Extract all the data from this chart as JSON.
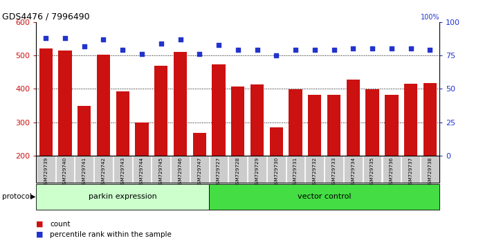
{
  "title": "GDS4476 / 7996490",
  "samples": [
    "GSM729739",
    "GSM729740",
    "GSM729741",
    "GSM729742",
    "GSM729743",
    "GSM729744",
    "GSM729745",
    "GSM729746",
    "GSM729747",
    "GSM729727",
    "GSM729728",
    "GSM729729",
    "GSM729730",
    "GSM729731",
    "GSM729732",
    "GSM729733",
    "GSM729734",
    "GSM729735",
    "GSM729736",
    "GSM729737",
    "GSM729738"
  ],
  "counts": [
    520,
    515,
    348,
    502,
    393,
    300,
    470,
    511,
    268,
    473,
    407,
    413,
    284,
    398,
    381,
    381,
    427,
    399,
    383,
    416,
    417
  ],
  "percentiles": [
    88,
    88,
    82,
    87,
    79,
    76,
    84,
    87,
    76,
    83,
    79,
    79,
    75,
    79,
    79,
    79,
    80,
    80,
    80,
    80,
    79
  ],
  "parkin_count": 9,
  "vector_count": 12,
  "ylim_left": [
    200,
    600
  ],
  "ylim_right": [
    0,
    100
  ],
  "yticks_left": [
    200,
    300,
    400,
    500,
    600
  ],
  "yticks_right": [
    0,
    25,
    50,
    75,
    100
  ],
  "bar_color": "#CC1111",
  "dot_color": "#2233CC",
  "parkin_bg": "#CCFFCC",
  "vector_bg": "#44DD44",
  "label_bg": "#CCCCCC",
  "legend_bar_label": "count",
  "legend_dot_label": "percentile rank within the sample",
  "protocol_label": "protocol",
  "parkin_label": "parkin expression",
  "vector_label": "vector control",
  "grid_lines": [
    300,
    400,
    500
  ],
  "fig_width": 6.98,
  "fig_height": 3.54
}
